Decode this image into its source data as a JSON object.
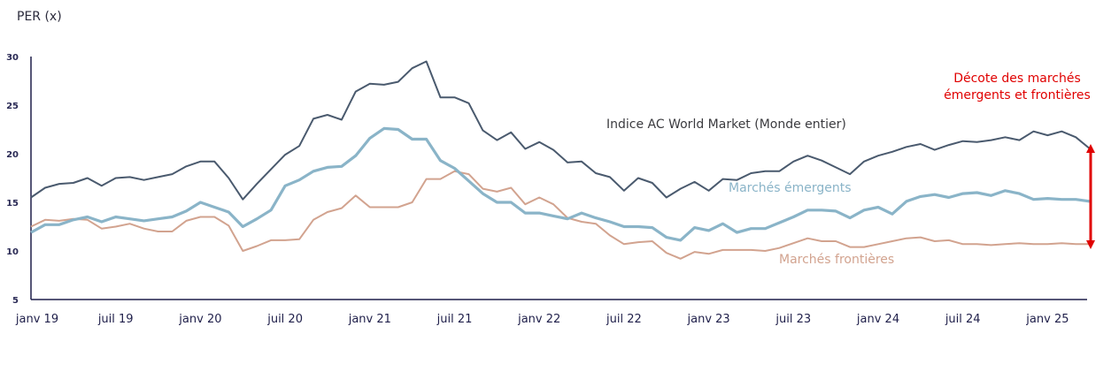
{
  "chart_data": {
    "type": "line",
    "title": "",
    "ylabel": "PER (x)",
    "xlabel": "",
    "ylim": [
      5,
      30
    ],
    "yticks": [
      5,
      10,
      15,
      20,
      25,
      30
    ],
    "grid": false,
    "x_start": "janv 19",
    "x_step": "1 month",
    "xtick_labels": [
      "janv 19",
      "juil 19",
      "janv 20",
      "juil 20",
      "janv 21",
      "juil 21",
      "janv 22",
      "juil 22",
      "janv 23",
      "juil 23",
      "janv 24",
      "juil 24",
      "janv 25"
    ],
    "xtick_index": [
      0,
      6,
      12,
      18,
      24,
      30,
      36,
      42,
      48,
      54,
      60,
      66,
      72
    ],
    "series": [
      {
        "name": "Indice AC World Market (Monde entier)",
        "color": "#4a5a6e",
        "values": [
          15.5,
          16.5,
          16.9,
          17.0,
          17.5,
          16.7,
          17.5,
          17.6,
          17.3,
          17.6,
          17.9,
          18.7,
          19.2,
          19.2,
          17.5,
          15.3,
          16.9,
          18.4,
          19.9,
          20.8,
          23.6,
          24.0,
          23.5,
          26.4,
          27.2,
          27.1,
          27.4,
          28.8,
          29.5,
          25.8,
          25.8,
          25.2,
          22.4,
          21.4,
          22.2,
          20.5,
          21.2,
          20.4,
          19.1,
          19.2,
          18.0,
          17.6,
          16.2,
          17.5,
          17.0,
          15.5,
          16.4,
          17.1,
          16.2,
          17.4,
          17.3,
          18.0,
          18.2,
          18.2,
          19.2,
          19.8,
          19.3,
          18.6,
          17.9,
          19.2,
          19.8,
          20.2,
          20.7,
          21.0,
          20.4,
          20.9,
          21.3,
          21.2,
          21.4,
          21.7,
          21.4,
          22.3,
          21.9,
          22.3,
          21.7,
          20.5
        ]
      },
      {
        "name": "Marchés émergents",
        "color": "#8ab4c8",
        "values": [
          11.9,
          12.7,
          12.7,
          13.2,
          13.5,
          13.0,
          13.5,
          13.3,
          13.1,
          13.3,
          13.5,
          14.1,
          15.0,
          14.5,
          14.0,
          12.5,
          13.3,
          14.2,
          16.7,
          17.3,
          18.2,
          18.6,
          18.7,
          19.8,
          21.6,
          22.6,
          22.5,
          21.5,
          21.5,
          19.3,
          18.5,
          17.2,
          15.9,
          15.0,
          15.0,
          13.9,
          13.9,
          13.6,
          13.3,
          13.9,
          13.4,
          13.0,
          12.5,
          12.5,
          12.4,
          11.4,
          11.1,
          12.4,
          12.1,
          12.8,
          11.9,
          12.3,
          12.3,
          12.9,
          13.5,
          14.2,
          14.2,
          14.1,
          13.4,
          14.2,
          14.5,
          13.8,
          15.1,
          15.6,
          15.8,
          15.5,
          15.9,
          16.0,
          15.7,
          16.2,
          15.9,
          15.3,
          15.4,
          15.3,
          15.3,
          15.1
        ]
      },
      {
        "name": "Marchés frontières",
        "color": "#d2a38f",
        "values": [
          12.5,
          13.2,
          13.1,
          13.3,
          13.2,
          12.3,
          12.5,
          12.8,
          12.3,
          12.0,
          12.0,
          13.1,
          13.5,
          13.5,
          12.6,
          10.0,
          10.5,
          11.1,
          11.1,
          11.2,
          13.2,
          14.0,
          14.4,
          15.7,
          14.5,
          14.5,
          14.5,
          15.0,
          17.4,
          17.4,
          18.2,
          17.9,
          16.4,
          16.1,
          16.5,
          14.8,
          15.5,
          14.8,
          13.4,
          13.0,
          12.8,
          11.6,
          10.7,
          10.9,
          11.0,
          9.8,
          9.2,
          9.9,
          9.7,
          10.1,
          10.1,
          10.1,
          10.0,
          10.3,
          10.8,
          11.3,
          11.0,
          11.0,
          10.4,
          10.4,
          10.7,
          11.0,
          11.3,
          11.4,
          11.0,
          11.1,
          10.7,
          10.7,
          10.6,
          10.7,
          10.8,
          10.7,
          10.7,
          10.8,
          10.7,
          10.7
        ]
      }
    ],
    "annotations": {
      "world_label": "Indice AC World Market (Monde entier)",
      "em_label": "Marchés émergents",
      "fr_label": "Marchés frontières",
      "decote_label": "Décote des marchés émergents et frontières",
      "decote_color": "#e00000"
    },
    "axis_color": "#1f1f4a"
  }
}
